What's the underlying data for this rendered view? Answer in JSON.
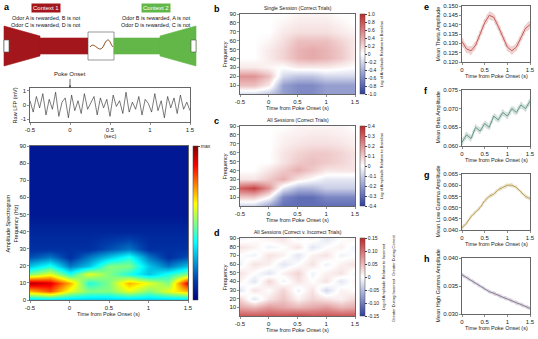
{
  "diagram": {
    "panel": "a",
    "contexts": [
      {
        "name": "Context 1",
        "color": "#a3161b",
        "rules": [
          "Odor A is rewarded, B is not",
          "Odor C is rewarded, D is not"
        ]
      },
      {
        "name": "Context 2",
        "color": "#63b748",
        "rules": [
          "Odor B is rewarded, A is not",
          "Odor D is rewarded, C is not"
        ]
      }
    ]
  },
  "chart_data": [
    {
      "type": "line",
      "color": "#222222",
      "ylabel": "Raw LFP (mV)",
      "xlabel": "(sec)",
      "annotations": [
        {
          "text": "Poke Onset",
          "x": 0
        }
      ],
      "xlim": [
        -0.5,
        1.5
      ],
      "xticks": [
        -0.5,
        0,
        0.5,
        1,
        1.5
      ],
      "ylim": [
        -1.2,
        1.2
      ],
      "yticks": [
        -1,
        0,
        1
      ],
      "x": [
        -0.5,
        -0.46,
        -0.42,
        -0.38,
        -0.34,
        -0.3,
        -0.26,
        -0.22,
        -0.18,
        -0.14,
        -0.1,
        -0.06,
        -0.02,
        0.02,
        0.06,
        0.1,
        0.14,
        0.18,
        0.22,
        0.26,
        0.3,
        0.34,
        0.38,
        0.42,
        0.46,
        0.5,
        0.54,
        0.58,
        0.62,
        0.66,
        0.7,
        0.74,
        0.78,
        0.82,
        0.86,
        0.9,
        0.94,
        0.98,
        1.02,
        1.06,
        1.1,
        1.14,
        1.18,
        1.22,
        1.26,
        1.3,
        1.34,
        1.38,
        1.42,
        1.46,
        1.5
      ],
      "values": [
        0.3,
        -0.5,
        0.6,
        -0.2,
        0.8,
        -0.7,
        0.4,
        -0.3,
        0.9,
        -0.8,
        0.2,
        0.5,
        -0.9,
        0.7,
        -0.4,
        0.3,
        -0.6,
        0.8,
        -0.3,
        0.1,
        0.6,
        -0.7,
        0.5,
        -0.2,
        0.4,
        -0.8,
        0.7,
        -0.1,
        0.3,
        -0.6,
        0.9,
        -0.5,
        0.2,
        -0.3,
        0.6,
        -0.7,
        0.4,
        0.1,
        -0.5,
        0.8,
        -0.4,
        0.3,
        -0.9,
        0.6,
        -0.2,
        0.5,
        -0.6,
        0.7,
        -0.3,
        0.2,
        -0.4
      ]
    },
    {
      "type": "heatmap",
      "color": "jet",
      "ylabel": [
        "Amplitude Spectrogram",
        "Frequency (Hz)"
      ],
      "xlabel": "Time from Poke Onset (s)",
      "xlim": [
        -0.5,
        1.5
      ],
      "xticks": [
        -0.5,
        0,
        0.5,
        1,
        1.5
      ],
      "ylim": [
        0,
        90
      ],
      "yticks": [
        0,
        10,
        20,
        30,
        40,
        50,
        60,
        70,
        80,
        90
      ],
      "zlim": [
        0,
        1
      ],
      "zticks": [
        {
          "value": 1,
          "label": "max"
        }
      ],
      "x": [
        -0.5,
        -0.25,
        0,
        0.25,
        0.5,
        0.75,
        1,
        1.25,
        1.5
      ],
      "y": [
        0,
        5,
        10,
        15,
        20,
        25,
        30,
        40,
        50,
        60,
        70,
        80,
        90
      ],
      "z": [
        [
          0.3,
          0.3,
          0.3,
          0.3,
          0.3,
          0.3,
          0.3,
          0.3,
          0.3
        ],
        [
          0.7,
          0.8,
          0.6,
          0.5,
          0.5,
          0.6,
          0.5,
          0.6,
          0.7
        ],
        [
          0.95,
          0.9,
          0.7,
          0.4,
          0.5,
          0.7,
          0.6,
          0.5,
          0.9
        ],
        [
          0.5,
          0.6,
          0.4,
          0.6,
          0.5,
          0.4,
          0.3,
          0.4,
          0.5
        ],
        [
          0.3,
          0.4,
          0.2,
          0.3,
          0.5,
          0.5,
          0.3,
          0.2,
          0.3
        ],
        [
          0.15,
          0.2,
          0.1,
          0.2,
          0.3,
          0.4,
          0.2,
          0.1,
          0.15
        ],
        [
          0.1,
          0.1,
          0.1,
          0.1,
          0.15,
          0.2,
          0.1,
          0.1,
          0.1
        ],
        [
          0.08,
          0.08,
          0.08,
          0.08,
          0.08,
          0.08,
          0.08,
          0.08,
          0.08
        ],
        [
          0.05,
          0.05,
          0.05,
          0.05,
          0.05,
          0.05,
          0.05,
          0.05,
          0.05
        ],
        [
          0.05,
          0.05,
          0.05,
          0.05,
          0.05,
          0.05,
          0.05,
          0.05,
          0.05
        ],
        [
          0.05,
          0.05,
          0.05,
          0.05,
          0.05,
          0.05,
          0.05,
          0.05,
          0.05
        ],
        [
          0.05,
          0.05,
          0.05,
          0.05,
          0.05,
          0.05,
          0.05,
          0.05,
          0.05
        ],
        [
          0.05,
          0.05,
          0.05,
          0.05,
          0.05,
          0.05,
          0.05,
          0.05,
          0.05
        ]
      ]
    },
    {
      "type": "heatmap",
      "panel": "b",
      "color": "red-white-blue",
      "title": "Single Session (Correct Trials)",
      "ylabel": "Frequency",
      "xlabel": "Time from Poke Onset (s)",
      "colorbar_label": "Log of Amplitude Relative to Baseline",
      "xlim": [
        -0.5,
        1.5
      ],
      "xticks": [
        -0.5,
        0,
        0.5,
        1,
        1.5
      ],
      "ylim": [
        0,
        90
      ],
      "yticks": [
        10,
        20,
        30,
        40,
        50,
        60,
        70,
        80,
        90
      ],
      "zlim": [
        -1,
        1
      ],
      "zticks": [
        {
          "value": 1,
          "label": "1.0"
        },
        0.8,
        0.6,
        0.4,
        0.2,
        0,
        -0.2,
        -0.4,
        -0.6,
        -0.8,
        {
          "value": -1,
          "label": "-1.0"
        }
      ],
      "x": [
        -0.5,
        -0.25,
        0,
        0.25,
        0.5,
        0.75,
        1,
        1.25,
        1.5
      ],
      "y": [
        0,
        10,
        20,
        30,
        40,
        50,
        60,
        70,
        80,
        90
      ],
      "z": [
        [
          -0.2,
          -0.2,
          -0.3,
          -0.5,
          -0.6,
          -0.6,
          -0.5,
          -0.5,
          -0.5
        ],
        [
          0.3,
          0.3,
          0.1,
          -0.5,
          -0.6,
          -0.6,
          -0.5,
          -0.5,
          -0.5
        ],
        [
          0.5,
          0.5,
          0.3,
          -0.2,
          -0.3,
          -0.3,
          -0.2,
          -0.2,
          -0.2
        ],
        [
          0.1,
          0.1,
          0.05,
          0.0,
          0.1,
          0.1,
          0.1,
          0.05,
          0.0
        ],
        [
          0.0,
          0.0,
          0.1,
          0.2,
          0.35,
          0.4,
          0.35,
          0.25,
          0.1
        ],
        [
          0.0,
          0.0,
          0.1,
          0.2,
          0.35,
          0.4,
          0.35,
          0.25,
          0.1
        ],
        [
          0.0,
          0.0,
          0.05,
          0.15,
          0.3,
          0.3,
          0.3,
          0.2,
          0.1
        ],
        [
          0.0,
          0.0,
          0.0,
          0.1,
          0.15,
          0.15,
          0.15,
          0.1,
          0.05
        ],
        [
          0.0,
          0.0,
          0.0,
          0.05,
          0.1,
          0.1,
          0.1,
          0.05,
          0.0
        ],
        [
          0.0,
          0.0,
          0.0,
          0.0,
          0.05,
          0.05,
          0.05,
          0.0,
          0.0
        ]
      ]
    },
    {
      "type": "heatmap",
      "panel": "c",
      "color": "red-white-blue",
      "title": "All Sessions (Correct Trials)",
      "ylabel": "Frequency",
      "xlabel": "Time from Poke Onset (s)",
      "colorbar_label": "Log of Amplitude Relative to Baseline",
      "xlim": [
        -0.5,
        1.5
      ],
      "xticks": [
        -0.5,
        0,
        0.5,
        1,
        1.5
      ],
      "ylim": [
        0,
        90
      ],
      "yticks": [
        10,
        20,
        30,
        40,
        50,
        60,
        70,
        80,
        90
      ],
      "zlim": [
        -0.4,
        0.4
      ],
      "zticks": [
        0.4,
        0.3,
        0.2,
        0.1,
        0,
        -0.1,
        -0.2,
        -0.3,
        -0.4
      ],
      "x": [
        -0.5,
        -0.25,
        0,
        0.25,
        0.5,
        0.75,
        1,
        1.25,
        1.5
      ],
      "y": [
        0,
        10,
        20,
        30,
        40,
        50,
        60,
        70,
        80,
        90
      ],
      "z": [
        [
          -0.1,
          -0.1,
          -0.2,
          -0.3,
          -0.3,
          -0.3,
          -0.3,
          -0.3,
          -0.3
        ],
        [
          0.1,
          0.1,
          0.0,
          -0.25,
          -0.3,
          -0.3,
          -0.25,
          -0.25,
          -0.25
        ],
        [
          0.3,
          0.35,
          0.2,
          -0.05,
          -0.15,
          -0.15,
          -0.1,
          -0.1,
          -0.1
        ],
        [
          0.05,
          0.05,
          0.1,
          0.15,
          0.05,
          0.0,
          -0.05,
          -0.05,
          -0.05
        ],
        [
          0.0,
          0.0,
          0.05,
          0.1,
          0.15,
          0.1,
          0.05,
          0.05,
          0.05
        ],
        [
          0.0,
          0.0,
          0.0,
          0.05,
          0.1,
          0.12,
          0.1,
          0.08,
          0.05
        ],
        [
          0.0,
          0.0,
          0.0,
          0.05,
          0.08,
          0.1,
          0.1,
          0.08,
          0.05
        ],
        [
          0.0,
          0.0,
          0.0,
          0.03,
          0.05,
          0.06,
          0.06,
          0.05,
          0.03
        ],
        [
          0.0,
          0.0,
          0.0,
          0.02,
          0.03,
          0.04,
          0.04,
          0.03,
          0.02
        ],
        [
          0.0,
          0.0,
          0.0,
          0.0,
          0.02,
          0.02,
          0.02,
          0.02,
          0.0
        ]
      ]
    },
    {
      "type": "heatmap",
      "panel": "d",
      "color": "red-white-blue",
      "title": "All Sessions (Correct v. Incorrect Trials)",
      "ylabel": "Frequency",
      "xlabel": "Time from Poke Onset (s)",
      "colorbar_label": "Log of Amplitude Relative to Incorrect",
      "colorbar_top_label": "Greater During Correct",
      "colorbar_bottom_label": "Greater During Incorrect",
      "xlim": [
        -0.5,
        1.5
      ],
      "xticks": [
        -0.5,
        0,
        0.5,
        1,
        1.5
      ],
      "ylim": [
        0,
        90
      ],
      "yticks": [
        10,
        20,
        30,
        40,
        50,
        60,
        70,
        80,
        90
      ],
      "zlim": [
        -0.15,
        0.15
      ],
      "zticks": [
        0.15,
        {
          "value": 0.1,
          "label": "0.10"
        },
        0.05,
        0,
        -0.05,
        {
          "value": -0.1,
          "label": "-0.10"
        },
        -0.15
      ],
      "x": [
        -0.5,
        -0.25,
        0,
        0.25,
        0.5,
        0.75,
        1,
        1.25,
        1.5
      ],
      "y": [
        0,
        10,
        20,
        30,
        40,
        50,
        60,
        70,
        80,
        90
      ],
      "z": [
        [
          0.12,
          0.12,
          0.12,
          0.12,
          0.13,
          0.12,
          0.12,
          0.12,
          0.12
        ],
        [
          0.06,
          0.05,
          0.07,
          0.06,
          0.05,
          0.06,
          0.07,
          0.05,
          0.06
        ],
        [
          0.03,
          -0.02,
          0.02,
          0.04,
          0.01,
          0.03,
          0.02,
          0.01,
          0.03
        ],
        [
          -0.02,
          0.02,
          0.0,
          0.03,
          -0.01,
          0.02,
          -0.03,
          0.01,
          0.0
        ],
        [
          0.01,
          -0.02,
          0.03,
          -0.01,
          0.02,
          0.0,
          0.02,
          -0.02,
          0.01
        ],
        [
          0.02,
          0.0,
          -0.02,
          0.01,
          0.03,
          -0.01,
          0.01,
          0.02,
          -0.01
        ],
        [
          -0.01,
          0.02,
          0.01,
          -0.02,
          0.0,
          0.02,
          -0.01,
          0.01,
          0.02
        ],
        [
          0.0,
          -0.01,
          0.02,
          0.01,
          -0.02,
          0.01,
          0.02,
          -0.01,
          0.0
        ],
        [
          0.02,
          0.01,
          -0.01,
          0.0,
          0.02,
          -0.02,
          0.0,
          0.01,
          -0.01
        ],
        [
          -0.01,
          0.0,
          0.01,
          0.02,
          -0.01,
          0.01,
          -0.02,
          0.0,
          0.01
        ]
      ]
    },
    {
      "type": "line",
      "panel": "e",
      "color": "#c0504d",
      "ylabel": "Mean Theta Amplitude",
      "xlabel": "Time from Poke Onset (s)",
      "xlim": [
        0,
        1.5
      ],
      "xticks": [
        0,
        0.5,
        1,
        1.5
      ],
      "ylim": [
        0.12,
        0.15
      ],
      "yticks": [
        {
          "value": 0.12,
          "label": "0.120"
        },
        {
          "value": 0.125,
          "label": "0.125"
        },
        {
          "value": 0.13,
          "label": "0.130"
        },
        {
          "value": 0.135,
          "label": "0.135"
        },
        {
          "value": 0.14,
          "label": "0.140"
        },
        {
          "value": 0.145,
          "label": "0.145"
        },
        {
          "value": 0.15,
          "label": "0.150"
        }
      ],
      "x": [
        0,
        0.1,
        0.2,
        0.3,
        0.4,
        0.5,
        0.6,
        0.7,
        0.8,
        0.9,
        1.0,
        1.1,
        1.2,
        1.3,
        1.4,
        1.5
      ],
      "values": [
        0.131,
        0.127,
        0.126,
        0.129,
        0.135,
        0.141,
        0.145,
        0.144,
        0.139,
        0.133,
        0.128,
        0.126,
        0.128,
        0.133,
        0.138,
        0.14
      ],
      "error": [
        0.002,
        0.002,
        0.002,
        0.002,
        0.002,
        0.002,
        0.002,
        0.002,
        0.002,
        0.002,
        0.002,
        0.002,
        0.002,
        0.002,
        0.002,
        0.002
      ]
    },
    {
      "type": "line",
      "panel": "f",
      "color": "#5b8f7f",
      "ylabel": "Mean Beta Amplitude",
      "xlabel": "Time from Poke Onset (s)",
      "xlim": [
        0,
        1.5
      ],
      "xticks": [
        0,
        0.5,
        1,
        1.5
      ],
      "ylim": [
        0.06,
        0.075
      ],
      "yticks": [
        {
          "value": 0.06,
          "label": "0.060"
        },
        {
          "value": 0.065,
          "label": "0.065"
        },
        {
          "value": 0.07,
          "label": "0.070"
        },
        {
          "value": 0.075,
          "label": "0.075"
        }
      ],
      "x": [
        0,
        0.1,
        0.2,
        0.3,
        0.4,
        0.5,
        0.6,
        0.7,
        0.8,
        0.9,
        1.0,
        1.1,
        1.2,
        1.3,
        1.4,
        1.5
      ],
      "values": [
        0.061,
        0.063,
        0.062,
        0.065,
        0.064,
        0.066,
        0.065,
        0.068,
        0.067,
        0.069,
        0.068,
        0.07,
        0.069,
        0.071,
        0.07,
        0.072
      ],
      "error": [
        0.0008,
        0.0008,
        0.0008,
        0.0008,
        0.0008,
        0.0008,
        0.0008,
        0.0008,
        0.0008,
        0.0008,
        0.0008,
        0.0008,
        0.0008,
        0.0008,
        0.0008,
        0.0008
      ]
    },
    {
      "type": "line",
      "panel": "g",
      "color": "#b59a4a",
      "ylabel": "Mean Low Gamma Amplitude",
      "xlabel": "Time from Poke Onset (s)",
      "xlim": [
        0,
        1.5
      ],
      "xticks": [
        0,
        0.5,
        1,
        1.5
      ],
      "ylim": [
        0.04,
        0.065
      ],
      "yticks": [
        {
          "value": 0.04,
          "label": "0.040"
        },
        {
          "value": 0.045,
          "label": "0.045"
        },
        {
          "value": 0.05,
          "label": "0.050"
        },
        {
          "value": 0.055,
          "label": "0.055"
        },
        {
          "value": 0.06,
          "label": "0.060"
        },
        {
          "value": 0.065,
          "label": "0.065"
        }
      ],
      "x": [
        0,
        0.1,
        0.2,
        0.3,
        0.4,
        0.5,
        0.6,
        0.7,
        0.8,
        0.9,
        1.0,
        1.1,
        1.2,
        1.3,
        1.4,
        1.5
      ],
      "values": [
        0.041,
        0.043,
        0.046,
        0.048,
        0.05,
        0.053,
        0.055,
        0.056,
        0.058,
        0.059,
        0.06,
        0.06,
        0.059,
        0.057,
        0.055,
        0.054
      ],
      "error": [
        0.0008,
        0.0008,
        0.0008,
        0.0008,
        0.0008,
        0.0008,
        0.0008,
        0.0008,
        0.0008,
        0.0008,
        0.0008,
        0.0008,
        0.0008,
        0.0008,
        0.0008,
        0.0008
      ]
    },
    {
      "type": "line",
      "panel": "h",
      "color": "#7e6e8f",
      "ylabel": "Mean High Gamma Amplitude",
      "xlabel": "Time from Poke Onset (s)",
      "xlim": [
        0,
        1.5
      ],
      "xticks": [
        0,
        0.5,
        1,
        1.5
      ],
      "ylim": [
        0.03,
        0.04
      ],
      "yticks": [
        {
          "value": 0.03,
          "label": "0.030"
        },
        {
          "value": 0.035,
          "label": "0.035"
        },
        {
          "value": 0.04,
          "label": "0.040"
        }
      ],
      "x": [
        0,
        0.1,
        0.2,
        0.3,
        0.4,
        0.5,
        0.6,
        0.7,
        0.8,
        0.9,
        1.0,
        1.1,
        1.2,
        1.3,
        1.4,
        1.5
      ],
      "values": [
        0.037,
        0.0365,
        0.036,
        0.0355,
        0.035,
        0.0345,
        0.034,
        0.0337,
        0.0333,
        0.033,
        0.0327,
        0.0323,
        0.032,
        0.0317,
        0.0313,
        0.031
      ],
      "error": [
        0.0003,
        0.0003,
        0.0003,
        0.0003,
        0.0003,
        0.0003,
        0.0003,
        0.0003,
        0.0003,
        0.0003,
        0.0003,
        0.0003,
        0.0003,
        0.0003,
        0.0003,
        0.0003
      ]
    }
  ]
}
